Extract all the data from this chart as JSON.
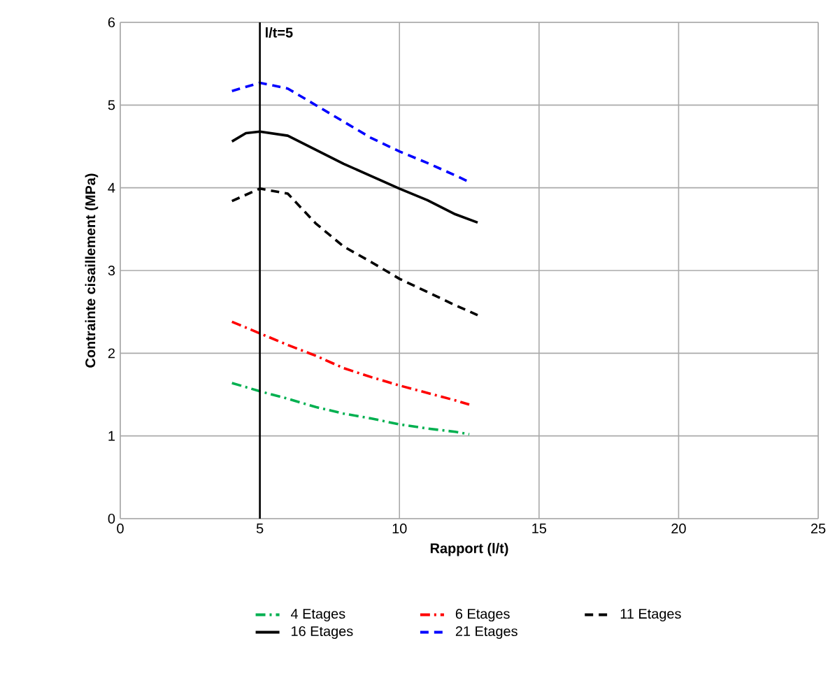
{
  "chart_data": {
    "type": "line",
    "xlabel": "Rapport (l/t)",
    "ylabel": "Contrainte cisaillement (MPa)",
    "xlim": [
      0,
      25
    ],
    "ylim": [
      0,
      6
    ],
    "xticks": [
      0,
      5,
      10,
      15,
      20,
      25
    ],
    "yticks": [
      0,
      1,
      2,
      3,
      4,
      5,
      6
    ],
    "grid": true,
    "legend": "bottom",
    "marker": "none",
    "ref_lines": [
      {
        "axis": "x",
        "value": 5,
        "label": "l/t=5",
        "color": "#000000"
      }
    ],
    "series": [
      {
        "name": "4 Etages",
        "color": "#00b050",
        "line_style": "dashdot",
        "x": [
          4,
          5,
          6,
          7,
          8,
          9,
          10,
          11,
          12,
          12.5
        ],
        "values": [
          1.64,
          1.54,
          1.45,
          1.35,
          1.27,
          1.21,
          1.14,
          1.09,
          1.05,
          1.02
        ]
      },
      {
        "name": "6 Etages",
        "color": "#ff0000",
        "line_style": "dashdot",
        "x": [
          4,
          5,
          6,
          7,
          8,
          9,
          10,
          11,
          12,
          12.5
        ],
        "values": [
          2.38,
          2.24,
          2.1,
          1.97,
          1.82,
          1.71,
          1.61,
          1.52,
          1.43,
          1.38
        ]
      },
      {
        "name": "11 Etages",
        "color": "#000000",
        "line_style": "dashed",
        "x": [
          4,
          5,
          6,
          7,
          8,
          9,
          10,
          11,
          12,
          12.8
        ],
        "values": [
          3.84,
          3.99,
          3.93,
          3.57,
          3.29,
          3.1,
          2.9,
          2.74,
          2.58,
          2.46
        ]
      },
      {
        "name": "16 Etages",
        "color": "#000000",
        "line_style": "solid",
        "x": [
          4,
          4.5,
          5,
          6,
          7,
          8,
          9,
          10,
          11,
          12,
          12.8
        ],
        "values": [
          4.56,
          4.66,
          4.68,
          4.63,
          4.46,
          4.29,
          4.14,
          3.99,
          3.85,
          3.68,
          3.58
        ]
      },
      {
        "name": "21 Etages",
        "color": "#0000ff",
        "line_style": "dashed",
        "x": [
          4,
          5,
          6,
          7,
          8,
          9,
          10,
          11,
          12,
          12.5
        ],
        "values": [
          5.17,
          5.27,
          5.2,
          5.0,
          4.8,
          4.6,
          4.44,
          4.3,
          4.15,
          4.07
        ]
      }
    ]
  }
}
